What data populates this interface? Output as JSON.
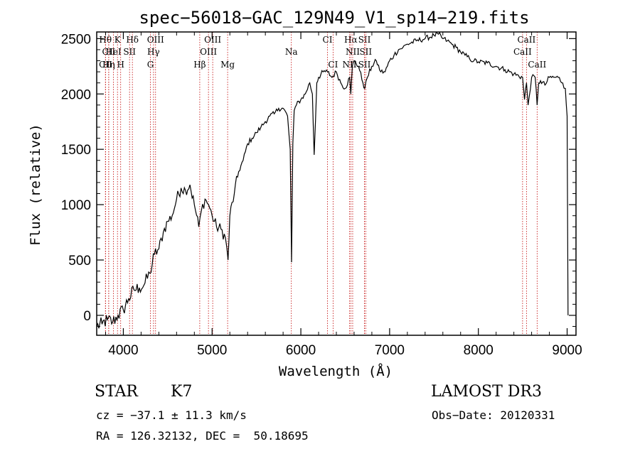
{
  "chart_data": {
    "type": "line",
    "title": "spec−56018−GAC_129N49_V1_sp14−219.fits",
    "xlabel": "Wavelength (Å)",
    "ylabel": "Flux (relative)",
    "xlim": [
      3700,
      9100
    ],
    "ylim": [
      -180,
      2560
    ],
    "x_ticks": [
      4000,
      5000,
      6000,
      7000,
      8000,
      9000
    ],
    "y_ticks": [
      0,
      500,
      1000,
      1500,
      2000,
      2500
    ],
    "grid": false,
    "series": [
      {
        "name": "flux",
        "x": [
          3700,
          3760,
          3820,
          3880,
          3940,
          4000,
          4060,
          4120,
          4180,
          4230,
          4300,
          4350,
          4400,
          4450,
          4500,
          4550,
          4600,
          4650,
          4700,
          4750,
          4800,
          4850,
          4880,
          4920,
          4960,
          5000,
          5050,
          5100,
          5150,
          5180,
          5200,
          5250,
          5300,
          5350,
          5400,
          5450,
          5500,
          5550,
          5600,
          5650,
          5700,
          5750,
          5800,
          5850,
          5880,
          5895,
          5910,
          5925,
          5950,
          6000,
          6050,
          6100,
          6130,
          6150,
          6180,
          6200,
          6250,
          6300,
          6350,
          6400,
          6450,
          6500,
          6550,
          6563,
          6580,
          6600,
          6650,
          6700,
          6720,
          6750,
          6800,
          6850,
          6900,
          6950,
          7000,
          7050,
          7100,
          7150,
          7200,
          7300,
          7400,
          7500,
          7550,
          7600,
          7650,
          7700,
          7750,
          7800,
          7850,
          7900,
          7950,
          8000,
          8100,
          8200,
          8300,
          8400,
          8498,
          8520,
          8542,
          8560,
          8600,
          8640,
          8662,
          8680,
          8700,
          8750,
          8800,
          8850,
          8900,
          8950,
          8980,
          9000,
          9010
        ],
        "values": [
          -100,
          -80,
          -40,
          -60,
          0,
          50,
          150,
          230,
          250,
          270,
          380,
          550,
          600,
          750,
          850,
          900,
          1050,
          1150,
          1130,
          1180,
          1000,
          800,
          950,
          1050,
          1000,
          900,
          800,
          780,
          700,
          500,
          900,
          1100,
          1300,
          1400,
          1550,
          1600,
          1650,
          1700,
          1750,
          1800,
          1820,
          1870,
          1870,
          1800,
          1500,
          480,
          1550,
          1850,
          1900,
          1950,
          2000,
          2100,
          2000,
          1450,
          2100,
          2150,
          2200,
          2200,
          2150,
          2200,
          2100,
          2050,
          2150,
          2000,
          2250,
          2300,
          2250,
          2100,
          2050,
          2150,
          2250,
          2300,
          2200,
          2200,
          2300,
          2350,
          2400,
          2420,
          2450,
          2480,
          2500,
          2530,
          2540,
          2500,
          2480,
          2450,
          2420,
          2380,
          2350,
          2320,
          2300,
          2290,
          2280,
          2250,
          2220,
          2180,
          2150,
          1950,
          2100,
          1900,
          2150,
          2150,
          1900,
          2100,
          2120,
          2080,
          2150,
          2150,
          2150,
          2100,
          2050,
          1800,
          0
        ]
      }
    ],
    "line_marks": [
      {
        "label": "Hθ",
        "wavelength": 3798,
        "row": 0
      },
      {
        "label": "K",
        "wavelength": 3934,
        "row": 0
      },
      {
        "label": "Hδ",
        "wavelength": 4102,
        "row": 0
      },
      {
        "label": "OIII",
        "wavelength": 4363,
        "row": 0
      },
      {
        "label": "OIII",
        "wavelength": 5007,
        "row": 0
      },
      {
        "label": "CI",
        "wavelength": 6300,
        "row": 0
      },
      {
        "label": "Hα",
        "wavelength": 6563,
        "row": 0
      },
      {
        "label": "SII",
        "wavelength": 6717,
        "row": 0
      },
      {
        "label": "CaII",
        "wavelength": 8542,
        "row": 0
      },
      {
        "label": "CII",
        "wavelength": 3835,
        "row": 1
      },
      {
        "label": "HeI",
        "wavelength": 3889,
        "row": 1
      },
      {
        "label": "SII",
        "wavelength": 4070,
        "row": 1
      },
      {
        "label": "Hγ",
        "wavelength": 4340,
        "row": 1
      },
      {
        "label": "OIII",
        "wavelength": 4959,
        "row": 1
      },
      {
        "label": "Na",
        "wavelength": 5893,
        "row": 1
      },
      {
        "label": "NII",
        "wavelength": 6584,
        "row": 1
      },
      {
        "label": "SII",
        "wavelength": 6731,
        "row": 1
      },
      {
        "label": "CaII",
        "wavelength": 8498,
        "row": 1
      },
      {
        "label": "CII",
        "wavelength": 3800,
        "row": 2
      },
      {
        "label": "Hη",
        "wavelength": 3835,
        "row": 2
      },
      {
        "label": "H",
        "wavelength": 3970,
        "row": 2
      },
      {
        "label": "G",
        "wavelength": 4305,
        "row": 2
      },
      {
        "label": "Hβ",
        "wavelength": 4861,
        "row": 2
      },
      {
        "label": "Mg",
        "wavelength": 5175,
        "row": 2
      },
      {
        "label": "CI",
        "wavelength": 6363,
        "row": 2
      },
      {
        "label": "NII",
        "wavelength": 6548,
        "row": 2
      },
      {
        "label": "SII",
        "wavelength": 6717,
        "row": 2
      },
      {
        "label": "CaII",
        "wavelength": 8662,
        "row": 2
      }
    ]
  },
  "info": {
    "object_class": "STAR",
    "subclass": "K7",
    "survey": "LAMOST DR3",
    "redshift_line": "cz = −37.1 ± 11.3 km/s",
    "obs_date_line": "Obs−Date: 20120331",
    "coords_line": "RA = 126.32132, DEC =  50.18695"
  }
}
